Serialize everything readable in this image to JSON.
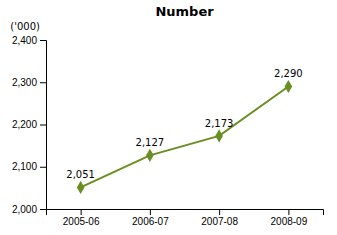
{
  "chart_data": {
    "type": "line",
    "title": "Number",
    "y_label": "('000)",
    "categories": [
      "2005-06",
      "2006-07",
      "2007-08",
      "2008-09"
    ],
    "values": [
      2051,
      2127,
      2173,
      2290
    ],
    "value_labels": [
      "2,051",
      "2,127",
      "2,173",
      "2,290"
    ],
    "data_labels": true,
    "color": "#6b8e23",
    "marker": "diamond",
    "ylim": [
      2000,
      2400
    ],
    "yticks": [
      {
        "value": 2000,
        "label": "2,000"
      },
      {
        "value": 2100,
        "label": "2,100"
      },
      {
        "value": 2200,
        "label": "2,200"
      },
      {
        "value": 2300,
        "label": "2,300"
      },
      {
        "value": 2400,
        "label": "2,400"
      }
    ],
    "grid": false
  }
}
